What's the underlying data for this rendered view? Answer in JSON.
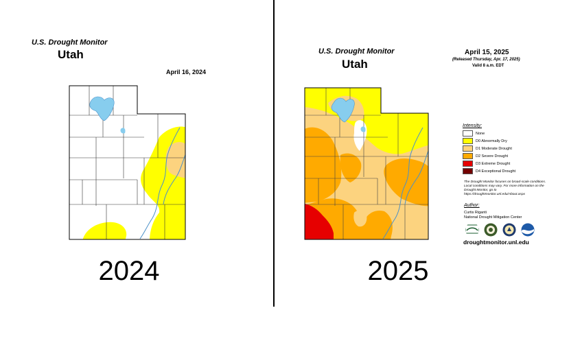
{
  "left": {
    "source": "U.S. Drought Monitor",
    "state": "Utah",
    "date": "April 16, 2024",
    "year": "2024"
  },
  "right": {
    "source": "U.S. Drought Monitor",
    "state": "Utah",
    "date": "April 15, 2025",
    "released": "(Released Thursday, Apr. 17, 2025)",
    "valid": "Valid 8 a.m. EDT",
    "year": "2025",
    "legend": {
      "title": "Intensity:",
      "items": [
        {
          "label": "None",
          "color": "#ffffff"
        },
        {
          "label": "D0 Abnormally Dry",
          "color": "#ffff00"
        },
        {
          "label": "D1 Moderate Drought",
          "color": "#fcd37f"
        },
        {
          "label": "D2 Severe Drought",
          "color": "#ffaa00"
        },
        {
          "label": "D3 Extreme Drought",
          "color": "#e60000"
        },
        {
          "label": "D4 Exceptional Drought",
          "color": "#730000"
        }
      ]
    },
    "note": "The Drought Monitor focuses on broad-scale conditions. Local conditions may vary. For more information on the Drought Monitor, go to https://droughtmonitor.unl.edu/About.aspx",
    "author_title": "Author:",
    "author_name": "Curtis Riganti",
    "author_org": "National Drought Mitigation Center",
    "logos": [
      "usda-logo",
      "ndmc-logo",
      "commerce-logo",
      "noaa-logo"
    ],
    "url": "droughtmonitor.unl.edu"
  },
  "colors": {
    "lake": "#87cdee",
    "river": "#4a90c8",
    "d0": "#ffff00",
    "d1": "#fcd37f",
    "d2": "#ffaa00",
    "d3": "#e60000"
  }
}
